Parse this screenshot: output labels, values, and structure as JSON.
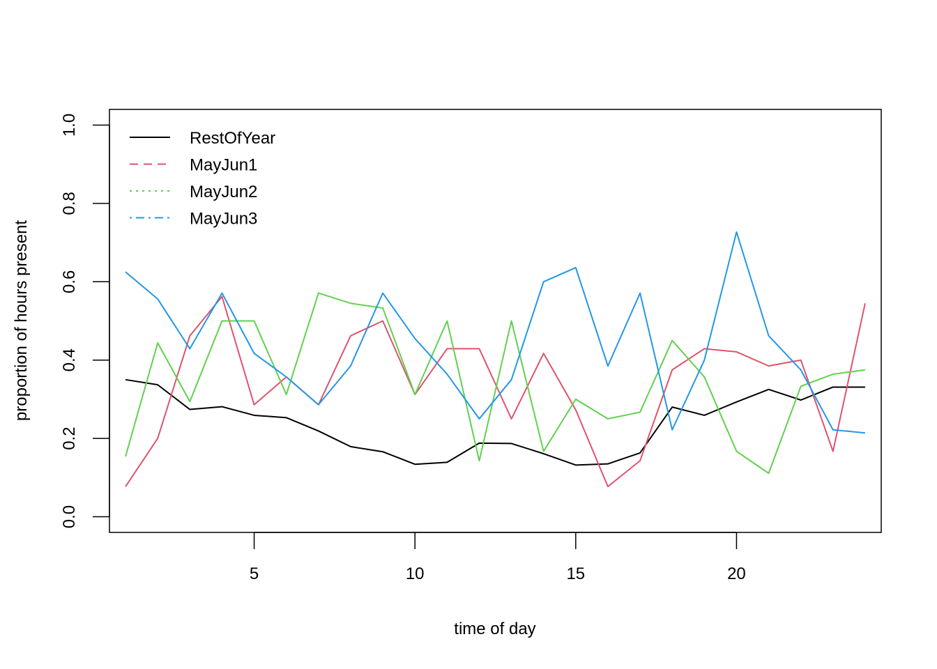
{
  "chart_data": {
    "type": "line",
    "xlabel": "time of day",
    "ylabel": "proportion of hours present",
    "xlim": [
      0.5,
      24.5
    ],
    "ylim": [
      0.0,
      1.0
    ],
    "x_ticks": [
      5,
      10,
      15,
      20
    ],
    "x_tick_labels": [
      "5",
      "10",
      "15",
      "20"
    ],
    "y_ticks": [
      0.0,
      0.2,
      0.4,
      0.6,
      0.8,
      1.0
    ],
    "y_tick_labels": [
      "0.0",
      "0.2",
      "0.4",
      "0.6",
      "0.8",
      "1.0"
    ],
    "grid": false,
    "legend_position": "top-left",
    "x": [
      1,
      2,
      3,
      4,
      5,
      6,
      7,
      8,
      9,
      10,
      11,
      12,
      13,
      14,
      15,
      16,
      17,
      18,
      19,
      20,
      21,
      22,
      23,
      24
    ],
    "series": [
      {
        "name": "RestOfYear",
        "color": "#000000",
        "legend_dash": "solid",
        "values": [
          0.35,
          0.337,
          0.274,
          0.281,
          0.259,
          0.253,
          0.219,
          0.179,
          0.166,
          0.134,
          0.139,
          0.188,
          0.187,
          0.161,
          0.132,
          0.135,
          0.163,
          0.28,
          0.259,
          0.293,
          0.325,
          0.298,
          0.331,
          0.331
        ]
      },
      {
        "name": "MayJun1",
        "color": "#DF536B",
        "legend_dash": "dashed",
        "values": [
          0.077,
          0.2,
          0.462,
          0.562,
          0.286,
          0.357,
          0.286,
          0.462,
          0.5,
          0.312,
          0.429,
          0.429,
          0.25,
          0.417,
          0.273,
          0.077,
          0.143,
          0.375,
          0.429,
          0.421,
          0.385,
          0.4,
          0.167,
          0.545
        ]
      },
      {
        "name": "MayJun2",
        "color": "#61D04F",
        "legend_dash": "dotted",
        "values": [
          0.154,
          0.444,
          0.294,
          0.5,
          0.5,
          0.312,
          0.571,
          0.545,
          0.533,
          0.312,
          0.5,
          0.143,
          0.5,
          0.167,
          0.3,
          0.25,
          0.267,
          0.45,
          0.357,
          0.167,
          0.111,
          0.333,
          0.364,
          0.375
        ]
      },
      {
        "name": "MayJun3",
        "color": "#2297E6",
        "legend_dash": "dotdash",
        "values": [
          0.625,
          0.556,
          0.429,
          0.571,
          0.417,
          0.357,
          0.286,
          0.385,
          0.571,
          0.455,
          0.364,
          0.25,
          0.35,
          0.6,
          0.636,
          0.385,
          0.571,
          0.222,
          0.4,
          0.727,
          0.462,
          0.375,
          0.222,
          0.214
        ]
      }
    ]
  }
}
